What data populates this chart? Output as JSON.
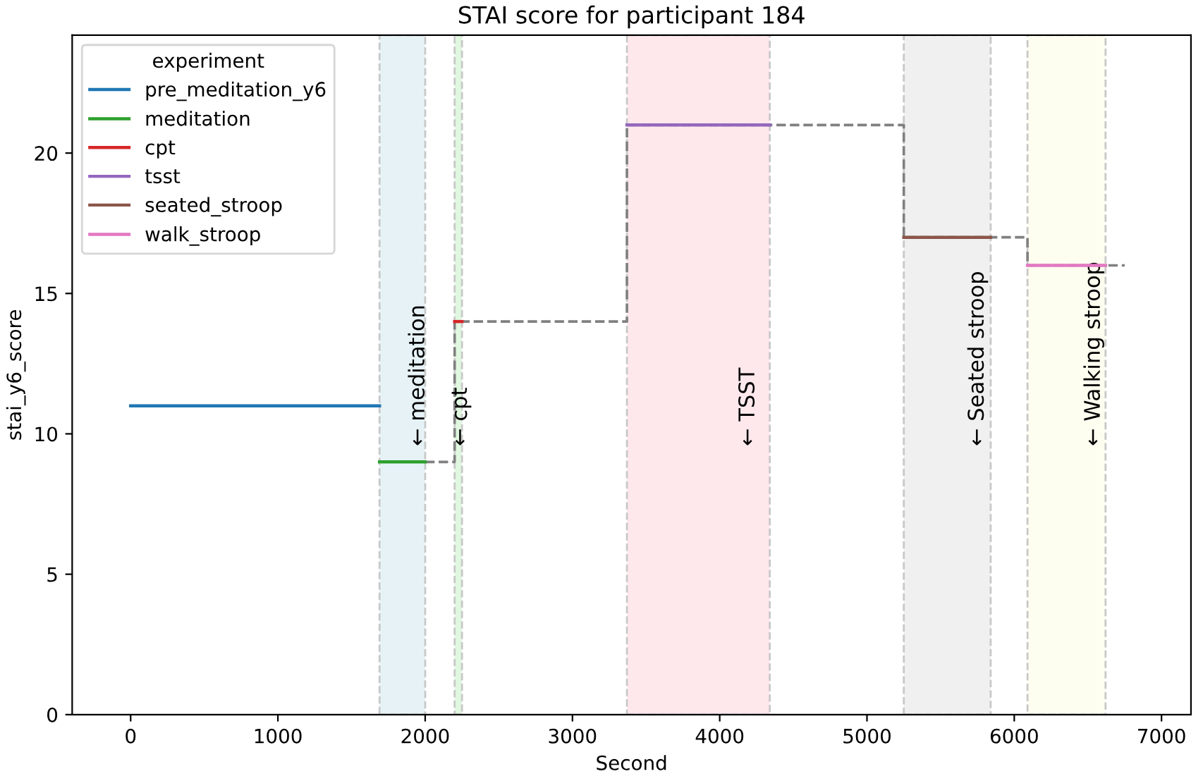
{
  "chart_data": {
    "type": "line",
    "title": "STAI score for participant 184",
    "xlabel": "Second",
    "ylabel": "stai_y6_score",
    "legend_title": "experiment",
    "legend": "top left",
    "grid": false,
    "xlim": [
      -397,
      7200
    ],
    "xticks": [
      0,
      1000,
      2000,
      3000,
      4000,
      5000,
      6000,
      7000
    ],
    "ylim": [
      0,
      24.2
    ],
    "yticks": [
      0,
      5,
      10,
      15,
      20
    ],
    "series": [
      {
        "name": "pre_meditation_y6",
        "color": "#1f77b4",
        "x": [
          0,
          1690
        ],
        "values": [
          11,
          11
        ]
      },
      {
        "name": "meditation",
        "color": "#2ca02c",
        "x": [
          1690,
          2000
        ],
        "values": [
          9,
          9
        ]
      },
      {
        "name": "cpt",
        "color": "#d62728",
        "x": [
          2200,
          2250
        ],
        "values": [
          14,
          14
        ]
      },
      {
        "name": "tsst",
        "color": "#9467bd",
        "x": [
          3370,
          4340
        ],
        "values": [
          21,
          21
        ]
      },
      {
        "name": "seated_stroop",
        "color": "#8c564b",
        "x": [
          5250,
          5840
        ],
        "values": [
          17,
          17
        ]
      },
      {
        "name": "walk_stroop",
        "color": "#e377c2",
        "x": [
          6090,
          6620
        ],
        "values": [
          16,
          16
        ]
      },
      {
        "color": "#808080",
        "line_style": "dashed",
        "x": [
          2000,
          2200,
          2200,
          3370,
          3370,
          5250,
          5250,
          6090,
          6090,
          6750
        ],
        "values": [
          9,
          9,
          14,
          14,
          21,
          21,
          17,
          17,
          16,
          16
        ]
      }
    ],
    "bands": [
      {
        "axis": "x",
        "from": 1690,
        "to": 2000,
        "label": "← meditation",
        "color": "#e6f2f6"
      },
      {
        "axis": "x",
        "from": 2200,
        "to": 2250,
        "label": "← cpt",
        "color": "#e0f7e0"
      },
      {
        "axis": "x",
        "from": 3370,
        "to": 4340,
        "label": "← TSST",
        "color": "#ffe8ec"
      },
      {
        "axis": "x",
        "from": 5250,
        "to": 5840,
        "label": "← Seated stroop",
        "color": "#f0f0f0"
      },
      {
        "axis": "x",
        "from": 6090,
        "to": 6620,
        "label": "← Walking stroop",
        "color": "#fefef0"
      }
    ]
  }
}
